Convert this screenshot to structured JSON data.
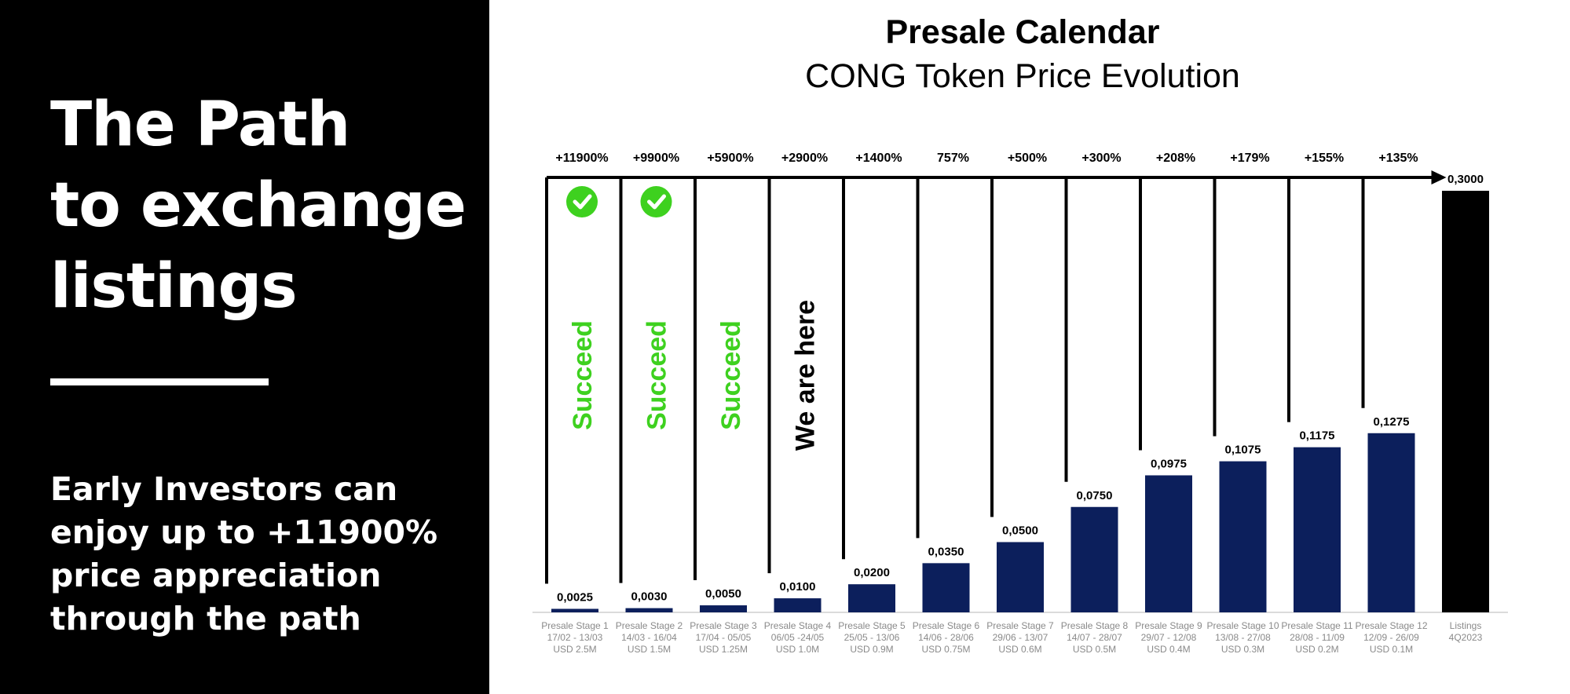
{
  "left_panel": {
    "heading_lines": [
      "The Path",
      "to exchange",
      "listings"
    ],
    "subtext_lines": [
      "Early Investors can",
      "enjoy up to +11900%",
      "price appreciation",
      "through the path"
    ]
  },
  "chart_data": {
    "type": "bar",
    "title": "Presale Calendar",
    "subtitle": "CONG Token Price Evolution",
    "categories": [
      "Presale Stage 1",
      "Presale Stage 2",
      "Presale Stage 3",
      "Presale Stage 4",
      "Presale Stage 5",
      "Presale Stage 6",
      "Presale Stage 7",
      "Presale Stage 8",
      "Presale Stage 9",
      "Presale Stage 10",
      "Presale Stage 11",
      "Presale Stage 12",
      "Listings"
    ],
    "dates": [
      "17/02 - 13/03",
      "14/03 - 16/04",
      "17/04 - 05/05",
      "06/05 -24/05",
      "25/05 - 13/06",
      "14/06 - 28/06",
      "29/06 - 13/07",
      "14/07 - 28/07",
      "29/07 - 12/08",
      "13/08 - 27/08",
      "28/08 - 11/09",
      "12/09 - 26/09",
      "4Q2023"
    ],
    "amounts": [
      "USD 2.5M",
      "USD 1.5M",
      "USD 1.25M",
      "USD 1.0M",
      "USD 0.9M",
      "USD 0.75M",
      "USD 0.6M",
      "USD 0.5M",
      "USD 0.4M",
      "USD 0.3M",
      "USD 0.2M",
      "USD 0.1M",
      ""
    ],
    "values": [
      0.0025,
      0.003,
      0.005,
      0.01,
      0.02,
      0.035,
      0.05,
      0.075,
      0.0975,
      0.1075,
      0.1175,
      0.1275,
      0.3
    ],
    "value_labels": [
      "0,0025",
      "0,0030",
      "0,0050",
      "0,0100",
      "0,0200",
      "0,0350",
      "0,0500",
      "0,0750",
      "0,0975",
      "0,1075",
      "0,1175",
      "0,1275",
      "0,3000"
    ],
    "appreciation_labels": [
      "+11900%",
      "+9900%",
      "+5900%",
      "+2900%",
      "+1400%",
      "757%",
      "+500%",
      "+300%",
      "+208%",
      "+179%",
      "+155%",
      "+135%"
    ],
    "ylim": [
      0,
      0.3
    ],
    "grid": false,
    "status_annotations": [
      {
        "stage_index": 0,
        "text": "Succeed",
        "check": true
      },
      {
        "stage_index": 1,
        "text": "Succeed",
        "check": true
      },
      {
        "stage_index": 2,
        "text": "Succeed",
        "check": false
      },
      {
        "stage_index": 3,
        "text": "We are here",
        "check": false
      }
    ],
    "colors": {
      "presale_bar": "#0c1f5c",
      "listing_bar": "#000000",
      "succeed": "#3ed11f",
      "check": "#3ed11f",
      "axis_label": "#8a8a8a",
      "text": "#000000"
    }
  }
}
